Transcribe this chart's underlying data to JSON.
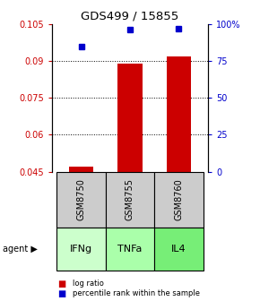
{
  "title": "GDS499 / 15855",
  "samples": [
    "GSM8750",
    "GSM8755",
    "GSM8760"
  ],
  "agents": [
    "IFNg",
    "TNFa",
    "IL4"
  ],
  "log_ratios": [
    0.047,
    0.089,
    0.092
  ],
  "percentile_ranks": [
    85,
    96,
    97
  ],
  "ylim_left": [
    0.045,
    0.105
  ],
  "ylim_right": [
    0,
    100
  ],
  "yticks_left": [
    0.045,
    0.06,
    0.075,
    0.09,
    0.105
  ],
  "yticks_right": [
    0,
    25,
    50,
    75,
    100
  ],
  "ytick_labels_left": [
    "0.045",
    "0.06",
    "0.075",
    "0.09",
    "0.105"
  ],
  "ytick_labels_right": [
    "0",
    "25",
    "50",
    "75",
    "100%"
  ],
  "bar_color": "#CC0000",
  "dot_color": "#0000CC",
  "sample_box_color": "#CCCCCC",
  "agent_colors": [
    "#CCFFCC",
    "#AAFFAA",
    "#77EE77"
  ],
  "legend_bar_label": "log ratio",
  "legend_dot_label": "percentile rank within the sample",
  "bar_width": 0.5,
  "baseline": 0.045,
  "grid_lines": [
    0.06,
    0.075,
    0.09
  ],
  "bg_color": "#FFFFFF"
}
